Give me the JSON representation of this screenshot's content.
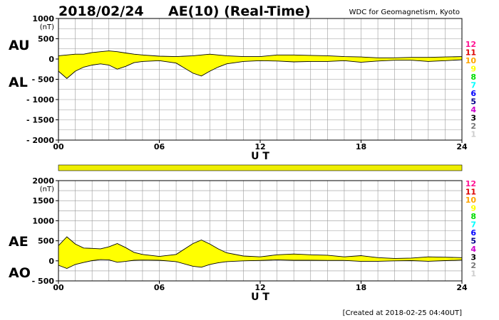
{
  "header": {
    "date": "2018/02/24",
    "title": "AE(10) (Real-Time)",
    "source": "WDC for Geomagnetism, Kyoto"
  },
  "footer": {
    "created": "[Created at 2018-02-25 04:40UT]"
  },
  "colors": {
    "fill": "#ffff00",
    "grid": "#999999",
    "bar": "#eeee00",
    "legend": [
      "#ff1493",
      "#dd0000",
      "#ffa500",
      "#ffff00",
      "#00dd00",
      "#00ffff",
      "#0000ff",
      "#000088",
      "#cc00cc",
      "#000000",
      "#777777",
      "#cccccc"
    ]
  },
  "legend_labels": [
    "12",
    "11",
    "10",
    "9",
    "8",
    "7",
    "6",
    "5",
    "4",
    "3",
    "2",
    "1"
  ],
  "chart_data": [
    {
      "type": "area",
      "title": "AU / AL",
      "upper_label": "AU",
      "lower_label": "AL",
      "unit": "(nT)",
      "xlabel": "U T",
      "xlim": [
        0,
        24
      ],
      "xticks": [
        0,
        6,
        12,
        18,
        24
      ],
      "xtick_labels": [
        "00",
        "06",
        "12",
        "18",
        "24"
      ],
      "ylim": [
        -2000,
        1000
      ],
      "yticks": [
        1000,
        500,
        0,
        -500,
        -1000,
        -1500,
        -2000
      ],
      "ytick_labels": [
        "1000",
        "500",
        "0",
        "- 500",
        "- 1000",
        "- 1500",
        "- 2000"
      ],
      "grid": true,
      "series": [
        {
          "name": "AU",
          "x": [
            0,
            0.5,
            1,
            1.5,
            2,
            2.5,
            3,
            3.5,
            4,
            4.5,
            5,
            6,
            7,
            8,
            8.5,
            9,
            9.5,
            10,
            11,
            12,
            13,
            14,
            15,
            16,
            17,
            18,
            19,
            20,
            21,
            22,
            23,
            24
          ],
          "values": [
            80,
            100,
            120,
            120,
            160,
            180,
            200,
            180,
            150,
            120,
            100,
            70,
            60,
            80,
            100,
            120,
            100,
            80,
            60,
            60,
            100,
            100,
            90,
            80,
            60,
            50,
            30,
            30,
            40,
            40,
            50,
            60
          ]
        },
        {
          "name": "AL",
          "x": [
            0,
            0.5,
            1,
            1.5,
            2,
            2.5,
            3,
            3.5,
            4,
            4.5,
            5,
            6,
            7,
            8,
            8.5,
            9,
            9.5,
            10,
            11,
            12,
            13,
            14,
            15,
            16,
            17,
            18,
            19,
            20,
            21,
            22,
            23,
            24
          ],
          "values": [
            -300,
            -480,
            -300,
            -200,
            -150,
            -120,
            -150,
            -250,
            -180,
            -90,
            -60,
            -40,
            -100,
            -350,
            -420,
            -300,
            -200,
            -120,
            -60,
            -40,
            -50,
            -70,
            -60,
            -60,
            -40,
            -80,
            -50,
            -30,
            -30,
            -60,
            -40,
            -20
          ]
        }
      ]
    },
    {
      "type": "area",
      "title": "AE / AO",
      "upper_label": "AE",
      "lower_label": "AO",
      "unit": "(nT)",
      "xlabel": "U T",
      "xlim": [
        0,
        24
      ],
      "xticks": [
        0,
        6,
        12,
        18,
        24
      ],
      "xtick_labels": [
        "00",
        "06",
        "12",
        "18",
        "24"
      ],
      "ylim": [
        -500,
        2000
      ],
      "yticks": [
        2000,
        1500,
        1000,
        500,
        0,
        -500
      ],
      "ytick_labels": [
        "2000",
        "1500",
        "1000",
        "500",
        "0",
        "- 500"
      ],
      "grid": true,
      "series": [
        {
          "name": "AE",
          "x": [
            0,
            0.5,
            1,
            1.5,
            2,
            2.5,
            3,
            3.5,
            4,
            4.5,
            5,
            6,
            7,
            8,
            8.5,
            9,
            9.5,
            10,
            11,
            12,
            13,
            14,
            15,
            16,
            17,
            18,
            19,
            20,
            21,
            22,
            23,
            24
          ],
          "values": [
            380,
            600,
            420,
            320,
            310,
            300,
            350,
            430,
            330,
            210,
            160,
            110,
            160,
            430,
            520,
            420,
            300,
            200,
            120,
            100,
            150,
            170,
            150,
            140,
            100,
            130,
            80,
            60,
            70,
            100,
            90,
            80
          ]
        },
        {
          "name": "AO",
          "x": [
            0,
            0.5,
            1,
            1.5,
            2,
            2.5,
            3,
            3.5,
            4,
            4.5,
            5,
            6,
            7,
            8,
            8.5,
            9,
            9.5,
            10,
            11,
            12,
            13,
            14,
            15,
            16,
            17,
            18,
            19,
            20,
            21,
            22,
            23,
            24
          ],
          "values": [
            -110,
            -190,
            -90,
            -40,
            5,
            30,
            25,
            -35,
            -15,
            15,
            20,
            15,
            -20,
            -135,
            -160,
            -90,
            -50,
            -20,
            0,
            10,
            25,
            15,
            15,
            10,
            10,
            -15,
            -10,
            0,
            5,
            -10,
            5,
            20
          ]
        }
      ]
    }
  ]
}
